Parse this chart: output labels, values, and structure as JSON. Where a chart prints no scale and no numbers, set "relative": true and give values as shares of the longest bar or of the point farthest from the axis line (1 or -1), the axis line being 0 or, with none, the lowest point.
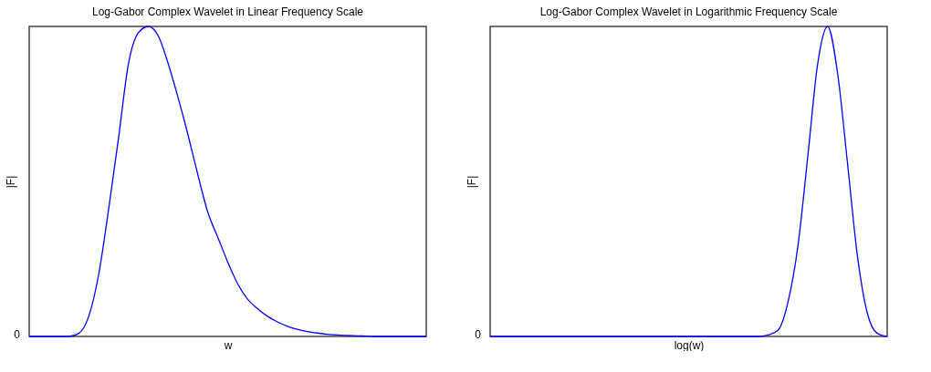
{
  "chart_data": [
    {
      "type": "line",
      "title": "Log-Gabor Complex Wavelet in Linear Frequency Scale",
      "xlabel": "w",
      "ylabel": "|F|",
      "relative": true,
      "annotations": [
        "0"
      ],
      "categories": [
        null,
        null,
        null,
        null,
        null,
        null,
        null,
        null,
        null,
        null,
        null,
        null,
        null,
        null,
        null,
        null,
        null,
        null,
        null,
        null,
        null,
        null,
        null,
        null,
        null,
        null,
        null,
        null,
        null,
        null,
        null,
        null,
        null,
        null,
        null,
        null,
        null,
        null,
        null,
        null,
        null
      ],
      "series": [
        {
          "color": "#0000ff",
          "values": [
            0,
            0,
            0,
            0,
            0,
            0.01,
            0.065,
            0.2,
            0.41,
            0.64,
            0.88,
            0.98,
            1,
            0.97,
            0.88,
            0.77,
            0.65,
            0.52,
            0.4,
            0.32,
            0.24,
            0.17,
            0.12,
            0.09,
            0.065,
            0.047,
            0.033,
            0.023,
            0.016,
            0.011,
            0.007,
            0.005,
            0.003,
            0.002,
            0.001,
            0,
            0,
            0,
            0,
            0,
            0
          ]
        }
      ]
    },
    {
      "type": "line",
      "title": "Log-Gabor Complex Wavelet in Logarithmic Frequency Scale",
      "xlabel": "log(w)",
      "ylabel": "|F|",
      "relative": true,
      "annotations": [
        "0"
      ],
      "categories": [
        null,
        null,
        null,
        null,
        null,
        null,
        null,
        null,
        null,
        null,
        null,
        null,
        null,
        null,
        null,
        null,
        null,
        null,
        null,
        null,
        null,
        null,
        null,
        null,
        null,
        null,
        null,
        null,
        null,
        null,
        null,
        null,
        null,
        null,
        null,
        null,
        null,
        null,
        null,
        null,
        null
      ],
      "series": [
        {
          "color": "#0000ff",
          "values": [
            0,
            0,
            0,
            0,
            0,
            0,
            0,
            0,
            0,
            0,
            0,
            0,
            0,
            0,
            0,
            0,
            0,
            0,
            0,
            0,
            0,
            0,
            0,
            0,
            0,
            0,
            0,
            0,
            0.005,
            0.02,
            0.11,
            0.29,
            0.58,
            0.88,
            1,
            0.85,
            0.56,
            0.26,
            0.075,
            0.01,
            0
          ]
        }
      ]
    }
  ]
}
